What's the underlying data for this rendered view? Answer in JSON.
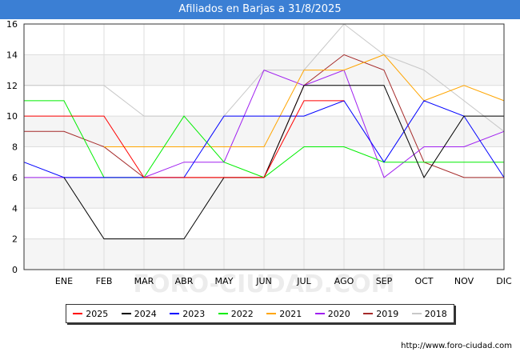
{
  "title": "Afiliados en Barjas a 31/8/2025",
  "credit": "http://www.foro-ciudad.com",
  "watermark": "FORO-CIUDAD.COM",
  "chart_data": {
    "type": "line",
    "categories": [
      "",
      "ENE",
      "FEB",
      "MAR",
      "ABR",
      "MAY",
      "JUN",
      "JUL",
      "AGO",
      "SEP",
      "OCT",
      "NOV",
      "DIC"
    ],
    "ylim": [
      0,
      16
    ],
    "yticks": [
      0,
      2,
      4,
      6,
      8,
      10,
      12,
      14,
      16
    ],
    "grid": true,
    "legend_position": "bottom",
    "series": [
      {
        "name": "2025",
        "color": "#ff0000",
        "values": [
          10,
          10,
          10,
          6,
          6,
          6,
          6,
          11,
          11,
          null,
          null,
          null,
          null
        ]
      },
      {
        "name": "2024",
        "color": "#000000",
        "values": [
          null,
          6,
          2,
          2,
          2,
          6,
          6,
          12,
          12,
          12,
          6,
          10,
          10
        ]
      },
      {
        "name": "2023",
        "color": "#0000ff",
        "values": [
          7,
          6,
          6,
          6,
          6,
          10,
          10,
          10,
          11,
          7,
          11,
          10,
          6
        ]
      },
      {
        "name": "2022",
        "color": "#00ee00",
        "values": [
          11,
          11,
          6,
          6,
          10,
          7,
          6,
          8,
          8,
          7,
          7,
          7,
          7
        ]
      },
      {
        "name": "2021",
        "color": "#ffa500",
        "values": [
          null,
          null,
          8,
          8,
          8,
          8,
          8,
          13,
          13,
          14,
          11,
          12,
          11
        ]
      },
      {
        "name": "2020",
        "color": "#a020f0",
        "values": [
          6,
          6,
          6,
          6,
          7,
          7,
          13,
          12,
          13,
          6,
          8,
          8,
          9
        ]
      },
      {
        "name": "2019",
        "color": "#a52a2a",
        "values": [
          9,
          9,
          8,
          6,
          6,
          6,
          6,
          12,
          14,
          13,
          7,
          6,
          6
        ]
      },
      {
        "name": "2018",
        "color": "#c8c8c8",
        "values": [
          12,
          12,
          12,
          10,
          10,
          10,
          13,
          13,
          16,
          14,
          13,
          11,
          9
        ]
      }
    ]
  }
}
